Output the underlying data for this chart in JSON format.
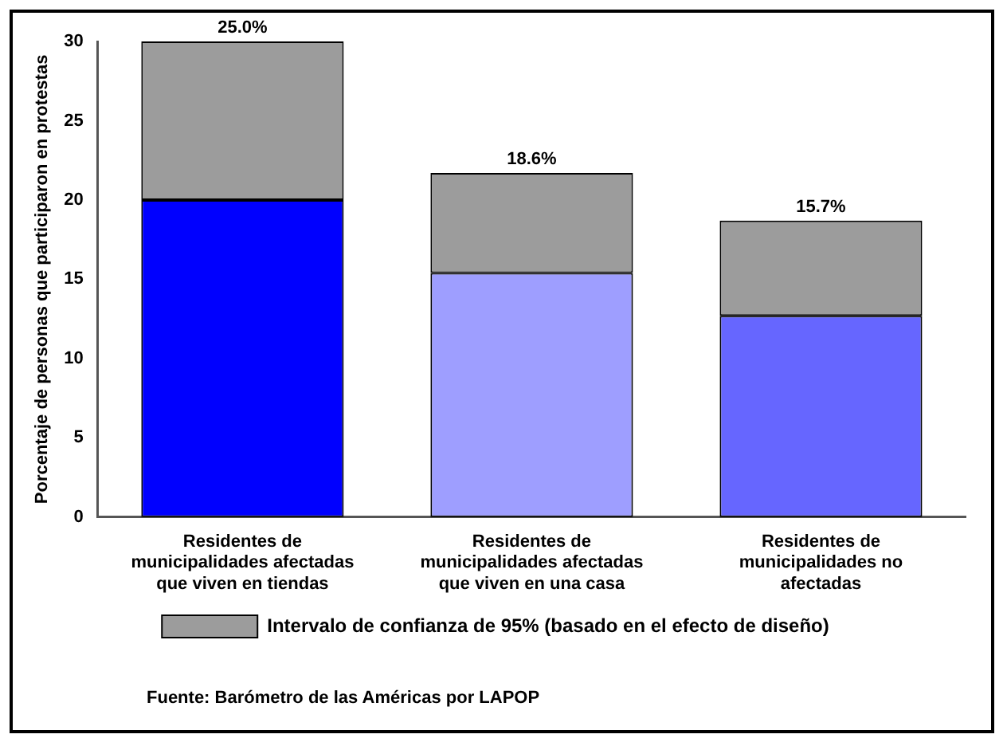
{
  "chart_data": {
    "type": "bar",
    "stacked": true,
    "ylabel": "Porcentaje de personas que participaron en protestas",
    "categories": [
      "Residentes de municipalidades afectadas que viven en tiendas",
      "Residentes de municipalidades afectadas que viven en una casa",
      "Residentes de municipalidades no afectadas"
    ],
    "series": [
      {
        "colors": [
          "#0000ff",
          "#9e9eff",
          "#6666ff"
        ],
        "values": [
          20,
          15.4,
          12.7
        ]
      },
      {
        "name": "Intervalo de confianza de 95% (basado en el efecto de diseño)",
        "color": "#9c9c9c",
        "values": [
          10,
          6.3,
          6.0
        ]
      }
    ],
    "ylim": [
      0,
      30
    ],
    "yticks": [
      0,
      5,
      10,
      15,
      20,
      25,
      30
    ],
    "grid": false,
    "legend": "bottom",
    "annotations": [
      {
        "text": "25.0%",
        "x": "Residentes de municipalidades afectadas que viven en tiendas",
        "y": 30
      },
      {
        "text": "18.6%",
        "x": "Residentes de municipalidades afectadas que viven en una casa",
        "y": 21.7
      },
      {
        "text": "15.7%",
        "x": "Residentes de municipalidades no afectadas",
        "y": 18.7
      },
      "Fuente: Barómetro de las Américas por LAPOP"
    ]
  }
}
